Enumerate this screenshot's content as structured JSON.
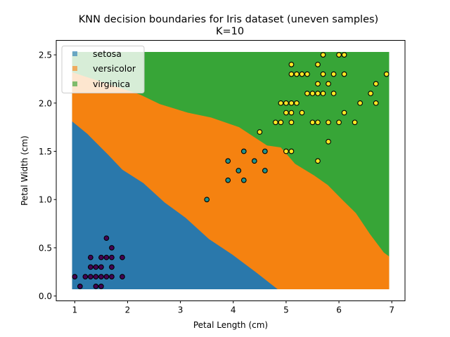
{
  "chart_data": {
    "type": "scatter",
    "title": "KNN decision boundaries for Iris dataset (uneven samples)",
    "subtitle": "K=10",
    "xlabel": "Petal Length (cm)",
    "ylabel": "Petal Width (cm)",
    "xlim": [
      0.65,
      7.25
    ],
    "ylim": [
      -0.05,
      2.65
    ],
    "xticks": [
      1,
      2,
      3,
      4,
      5,
      6,
      7
    ],
    "xtick_labels": [
      "1",
      "2",
      "3",
      "4",
      "5",
      "6",
      "7"
    ],
    "yticks": [
      0,
      0.5,
      1,
      1.5,
      2,
      2.5
    ],
    "ytick_labels": [
      "0.0",
      "0.5",
      "1.0",
      "1.5",
      "2.0",
      "2.5"
    ],
    "grid": false,
    "legend": {
      "placement": "top-left",
      "entries": [
        {
          "label": "setosa",
          "color": "#1f77b4"
        },
        {
          "label": "versicolor",
          "color": "#ff7f0e"
        },
        {
          "label": "virginica",
          "color": "#2ca02c"
        }
      ]
    },
    "decision_regions": {
      "mesh_x": [
        0.95,
        6.95
      ],
      "mesh_y": [
        0.07,
        2.53
      ],
      "colors": {
        "setosa": "#1f77b4",
        "versicolor": "#ff7f0e",
        "virginica": "#2ca02c"
      },
      "setosa_versicolor_boundary": [
        [
          0.95,
          1.81
        ],
        [
          1.24,
          1.68
        ],
        [
          1.64,
          1.46
        ],
        [
          1.9,
          1.31
        ],
        [
          2.3,
          1.17
        ],
        [
          2.7,
          0.97
        ],
        [
          3.1,
          0.81
        ],
        [
          3.54,
          0.59
        ],
        [
          3.98,
          0.43
        ],
        [
          4.42,
          0.25
        ],
        [
          4.84,
          0.07
        ]
      ],
      "versicolor_virginica_boundary": [
        [
          0.95,
          2.32
        ],
        [
          2.23,
          2.09
        ],
        [
          2.61,
          1.99
        ],
        [
          3.14,
          1.9
        ],
        [
          3.58,
          1.85
        ],
        [
          4.11,
          1.75
        ],
        [
          4.64,
          1.56
        ],
        [
          4.9,
          1.54
        ],
        [
          5.17,
          1.37
        ],
        [
          5.53,
          1.25
        ],
        [
          5.79,
          1.15
        ],
        [
          6.06,
          1.0
        ],
        [
          6.32,
          0.86
        ],
        [
          6.59,
          0.64
        ],
        [
          6.85,
          0.45
        ],
        [
          6.95,
          0.41
        ]
      ]
    },
    "series": [
      {
        "class": "setosa",
        "color": "#440154",
        "points": [
          [
            1.6,
            0.6
          ],
          [
            1.7,
            0.5
          ],
          [
            1.3,
            0.4
          ],
          [
            1.5,
            0.4
          ],
          [
            1.6,
            0.4
          ],
          [
            1.7,
            0.4
          ],
          [
            1.9,
            0.4
          ],
          [
            1.3,
            0.3
          ],
          [
            1.4,
            0.3
          ],
          [
            1.5,
            0.3
          ],
          [
            1.7,
            0.3
          ],
          [
            1.0,
            0.2
          ],
          [
            1.2,
            0.2
          ],
          [
            1.3,
            0.2
          ],
          [
            1.4,
            0.2
          ],
          [
            1.5,
            0.2
          ],
          [
            1.6,
            0.2
          ],
          [
            1.7,
            0.2
          ],
          [
            1.9,
            0.2
          ],
          [
            1.1,
            0.1
          ],
          [
            1.4,
            0.1
          ],
          [
            1.5,
            0.1
          ]
        ]
      },
      {
        "class": "versicolor",
        "color": "#21918c",
        "points": [
          [
            4.2,
            1.5
          ],
          [
            4.6,
            1.5
          ],
          [
            3.9,
            1.4
          ],
          [
            4.4,
            1.4
          ],
          [
            4.1,
            1.3
          ],
          [
            4.6,
            1.3
          ],
          [
            3.9,
            1.2
          ],
          [
            4.2,
            1.2
          ],
          [
            3.5,
            1.0
          ]
        ]
      },
      {
        "class": "virginica",
        "color": "#fde725",
        "points": [
          [
            5.7,
            2.5
          ],
          [
            6.0,
            2.5
          ],
          [
            6.1,
            2.5
          ],
          [
            5.1,
            2.4
          ],
          [
            5.6,
            2.4
          ],
          [
            5.1,
            2.3
          ],
          [
            5.2,
            2.3
          ],
          [
            5.3,
            2.3
          ],
          [
            5.4,
            2.3
          ],
          [
            5.7,
            2.3
          ],
          [
            5.9,
            2.3
          ],
          [
            6.1,
            2.3
          ],
          [
            6.9,
            2.3
          ],
          [
            5.6,
            2.2
          ],
          [
            5.8,
            2.2
          ],
          [
            6.7,
            2.2
          ],
          [
            5.4,
            2.1
          ],
          [
            5.5,
            2.1
          ],
          [
            5.6,
            2.1
          ],
          [
            5.7,
            2.1
          ],
          [
            5.9,
            2.1
          ],
          [
            6.6,
            2.1
          ],
          [
            4.9,
            2.0
          ],
          [
            5.0,
            2.0
          ],
          [
            5.1,
            2.0
          ],
          [
            5.2,
            2.0
          ],
          [
            6.4,
            2.0
          ],
          [
            6.7,
            2.0
          ],
          [
            5.0,
            1.9
          ],
          [
            5.1,
            1.9
          ],
          [
            5.3,
            1.9
          ],
          [
            6.1,
            1.9
          ],
          [
            4.8,
            1.8
          ],
          [
            4.9,
            1.8
          ],
          [
            5.1,
            1.8
          ],
          [
            5.5,
            1.8
          ],
          [
            5.6,
            1.8
          ],
          [
            5.8,
            1.8
          ],
          [
            6.0,
            1.8
          ],
          [
            6.3,
            1.8
          ],
          [
            4.5,
            1.7
          ],
          [
            5.8,
            1.6
          ],
          [
            5.0,
            1.5
          ],
          [
            5.1,
            1.5
          ],
          [
            5.6,
            1.4
          ]
        ]
      }
    ]
  }
}
